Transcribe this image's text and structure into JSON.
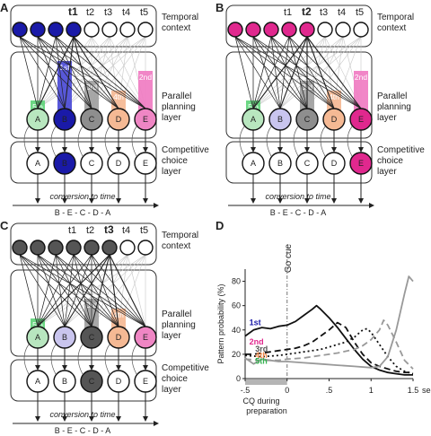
{
  "layers": {
    "temporal": "Temporal context",
    "planning_line1": "Parallel",
    "planning_line2": "planning",
    "planning_line3": "layer",
    "choice_line1": "Competitive",
    "choice_line2": "choice",
    "choice_line3": "layer"
  },
  "conversion_label": "conversion to time",
  "sequence_label": "B - E - C - D - A",
  "nodes": [
    "A",
    "B",
    "C",
    "D",
    "E"
  ],
  "node_colors": {
    "A": "#b8e6bf",
    "B": "#c9c5ee",
    "C": "#8e8e8e",
    "D": "#f5b994",
    "E": "#ef86c4"
  },
  "panels": [
    {
      "letter": "A",
      "time_labels": [
        "t1",
        "t2",
        "t3",
        "t4",
        "t5"
      ],
      "active_t": 0,
      "temporal_color": "#1a1aa8",
      "bars": [
        {
          "node": "B",
          "rank": "1st",
          "color": "#4a4ad6",
          "level": 1.0
        },
        {
          "node": "E",
          "rank": "2nd",
          "color": "#f07cc2",
          "level": 0.8
        },
        {
          "node": "C",
          "rank": "3rd",
          "color": "#a0a0a0",
          "level": 0.6
        },
        {
          "node": "D",
          "rank": "4th",
          "color": "#f5b994",
          "level": 0.4
        },
        {
          "node": "A",
          "rank": "5th",
          "color": "#5fd47a",
          "level": 0.2
        }
      ],
      "highlight": "B",
      "highlight_color": "#1a1aa8"
    },
    {
      "letter": "B",
      "time_labels": [
        "t1",
        "t2",
        "t3",
        "t4",
        "t5"
      ],
      "active_t": 1,
      "temporal_color": "#e0288e",
      "bars": [
        {
          "node": "E",
          "rank": "2nd",
          "color": "#f07cc2",
          "level": 0.8
        },
        {
          "node": "C",
          "rank": "3rd",
          "color": "#a0a0a0",
          "level": 0.6
        },
        {
          "node": "D",
          "rank": "4th",
          "color": "#f5b994",
          "level": 0.4
        },
        {
          "node": "A",
          "rank": "5th",
          "color": "#5fd47a",
          "level": 0.2
        }
      ],
      "highlight": "E",
      "highlight_color": "#e0288e"
    },
    {
      "letter": "C",
      "time_labels": [
        "t1",
        "t2",
        "t3",
        "t4",
        "t5"
      ],
      "active_t": 2,
      "temporal_color": "#555555",
      "bars": [
        {
          "node": "C",
          "rank": "3rd",
          "color": "#a0a0a0",
          "level": 0.6
        },
        {
          "node": "D",
          "rank": "4th",
          "color": "#f5b994",
          "level": 0.4
        },
        {
          "node": "A",
          "rank": "5th",
          "color": "#5fd47a",
          "level": 0.2
        }
      ],
      "highlight": "C",
      "highlight_color": "#555555"
    }
  ],
  "chart": {
    "letter": "D",
    "ylabel": "Pattern probability (%)",
    "xlabel_line1": "CQ during",
    "xlabel_line2": "preparation",
    "go_cue": "Go cue",
    "sec_label": "sec",
    "x_ticks": [
      -0.5,
      0,
      0.5,
      1,
      1.5
    ],
    "x_tick_labels": [
      "-.5",
      "0",
      ".5",
      "1",
      "1.5"
    ],
    "y_ticks": [
      0,
      20,
      40,
      60,
      80
    ],
    "xlim": [
      -0.5,
      1.5
    ],
    "ylim": [
      0,
      90
    ],
    "series_labels": [
      {
        "text": "1st",
        "color": "#1a1aa8",
        "x": -0.45,
        "y": 44
      },
      {
        "text": "2nd",
        "color": "#e0288e",
        "x": -0.45,
        "y": 28
      },
      {
        "text": "3rd",
        "color": "#555555",
        "x": -0.38,
        "y": 22
      },
      {
        "text": "4th",
        "color": "#f08a4b",
        "x": -0.38,
        "y": 17
      },
      {
        "text": "5th",
        "color": "#33b34f",
        "x": -0.38,
        "y": 12
      }
    ]
  },
  "chart_data": {
    "type": "line",
    "xlabel": "CQ during preparation",
    "ylabel": "Pattern probability (%)",
    "xlim": [
      -0.5,
      1.5
    ],
    "ylim": [
      0,
      90
    ],
    "series": [
      {
        "name": "1st",
        "color": "#111111",
        "dash": "solid",
        "x": [
          -0.5,
          -0.4,
          -0.3,
          -0.2,
          -0.1,
          0.0,
          0.1,
          0.2,
          0.3,
          0.35,
          0.4,
          0.5,
          0.6,
          0.7,
          0.8,
          0.9,
          1.0,
          1.1,
          1.2,
          1.3,
          1.4,
          1.5
        ],
        "y": [
          35,
          40,
          42,
          41,
          43,
          44,
          47,
          52,
          57,
          60,
          57,
          50,
          42,
          33,
          24,
          16,
          10,
          7,
          5,
          4,
          3,
          3
        ]
      },
      {
        "name": "2nd",
        "color": "#111111",
        "dash": "7,4",
        "x": [
          -0.5,
          -0.4,
          -0.3,
          -0.2,
          -0.1,
          0.0,
          0.1,
          0.2,
          0.3,
          0.4,
          0.5,
          0.6,
          0.7,
          0.8,
          0.9,
          1.0,
          1.1,
          1.2,
          1.3,
          1.4,
          1.5
        ],
        "y": [
          20,
          20,
          21,
          22,
          23,
          24,
          25,
          27,
          30,
          35,
          40,
          46,
          42,
          30,
          20,
          13,
          10,
          8,
          6,
          5,
          5
        ]
      },
      {
        "name": "3rd",
        "color": "#111111",
        "dash": "2,3",
        "x": [
          -0.5,
          -0.3,
          -0.1,
          0.0,
          0.2,
          0.4,
          0.5,
          0.6,
          0.7,
          0.8,
          0.9,
          0.95,
          1.0,
          1.1,
          1.2,
          1.3,
          1.4,
          1.5
        ],
        "y": [
          19,
          18,
          19,
          20,
          22,
          24,
          26,
          28,
          30,
          34,
          40,
          41,
          38,
          28,
          18,
          10,
          6,
          4
        ]
      },
      {
        "name": "4th",
        "color": "#999999",
        "dash": "7,4",
        "x": [
          -0.5,
          -0.3,
          -0.1,
          0.0,
          0.2,
          0.4,
          0.6,
          0.8,
          0.9,
          1.0,
          1.1,
          1.15,
          1.2,
          1.3,
          1.4,
          1.5
        ],
        "y": [
          16,
          15,
          15,
          16,
          17,
          19,
          21,
          24,
          27,
          32,
          40,
          48,
          44,
          30,
          15,
          8
        ]
      },
      {
        "name": "5th",
        "color": "#999999",
        "dash": "solid",
        "x": [
          -0.5,
          -0.4,
          -0.3,
          -0.2,
          -0.1,
          0.0,
          0.2,
          0.4,
          0.6,
          0.8,
          1.0,
          1.1,
          1.2,
          1.3,
          1.4,
          1.45,
          1.5
        ],
        "y": [
          17,
          12,
          16,
          15,
          14,
          14,
          13,
          12,
          11,
          10,
          9,
          10,
          18,
          40,
          70,
          84,
          80
        ]
      }
    ]
  }
}
